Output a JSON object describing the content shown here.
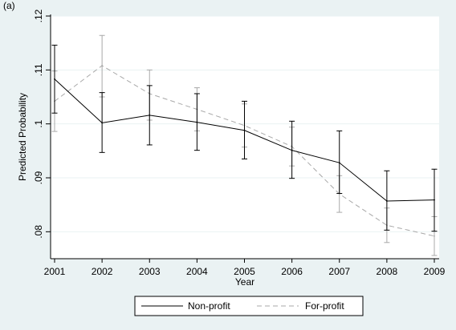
{
  "panel_label": "(a)",
  "chart_data": {
    "type": "line",
    "xlabel": "Year",
    "ylabel": "Predicted Probability",
    "x": [
      2001,
      2002,
      2003,
      2004,
      2005,
      2006,
      2007,
      2008,
      2009
    ],
    "xlim": [
      2001,
      2009
    ],
    "ylim": [
      0.075,
      0.12
    ],
    "y_ticks": [
      0.08,
      0.09,
      0.1,
      0.11,
      0.12
    ],
    "y_tick_labels": [
      ".08",
      ".09",
      ".1",
      ".11",
      ".12"
    ],
    "grid": true,
    "legend_position": "bottom",
    "series": [
      {
        "name": "Non-profit",
        "style": "solid",
        "color": "#000000",
        "values": [
          0.1083,
          0.1002,
          0.1016,
          0.1003,
          0.0988,
          0.0951,
          0.0928,
          0.0857,
          0.0859
        ],
        "ci_low": [
          0.102,
          0.0947,
          0.0961,
          0.0951,
          0.0935,
          0.0899,
          0.0871,
          0.0803,
          0.0801
        ],
        "ci_high": [
          0.1146,
          0.1058,
          0.1071,
          0.1056,
          0.1042,
          0.1005,
          0.0987,
          0.0913,
          0.0916
        ]
      },
      {
        "name": "For-profit",
        "style": "dashed",
        "color": "#a8a8a8",
        "values": [
          0.1042,
          0.1108,
          0.1056,
          0.1027,
          0.0997,
          0.0958,
          0.087,
          0.0812,
          0.0792
        ],
        "ci_low": [
          0.0986,
          0.105,
          0.1007,
          0.0987,
          0.0957,
          0.0922,
          0.0836,
          0.078,
          0.0756
        ],
        "ci_high": [
          0.1098,
          0.1164,
          0.11,
          0.1067,
          0.1037,
          0.0994,
          0.0904,
          0.0844,
          0.0828
        ]
      }
    ]
  }
}
